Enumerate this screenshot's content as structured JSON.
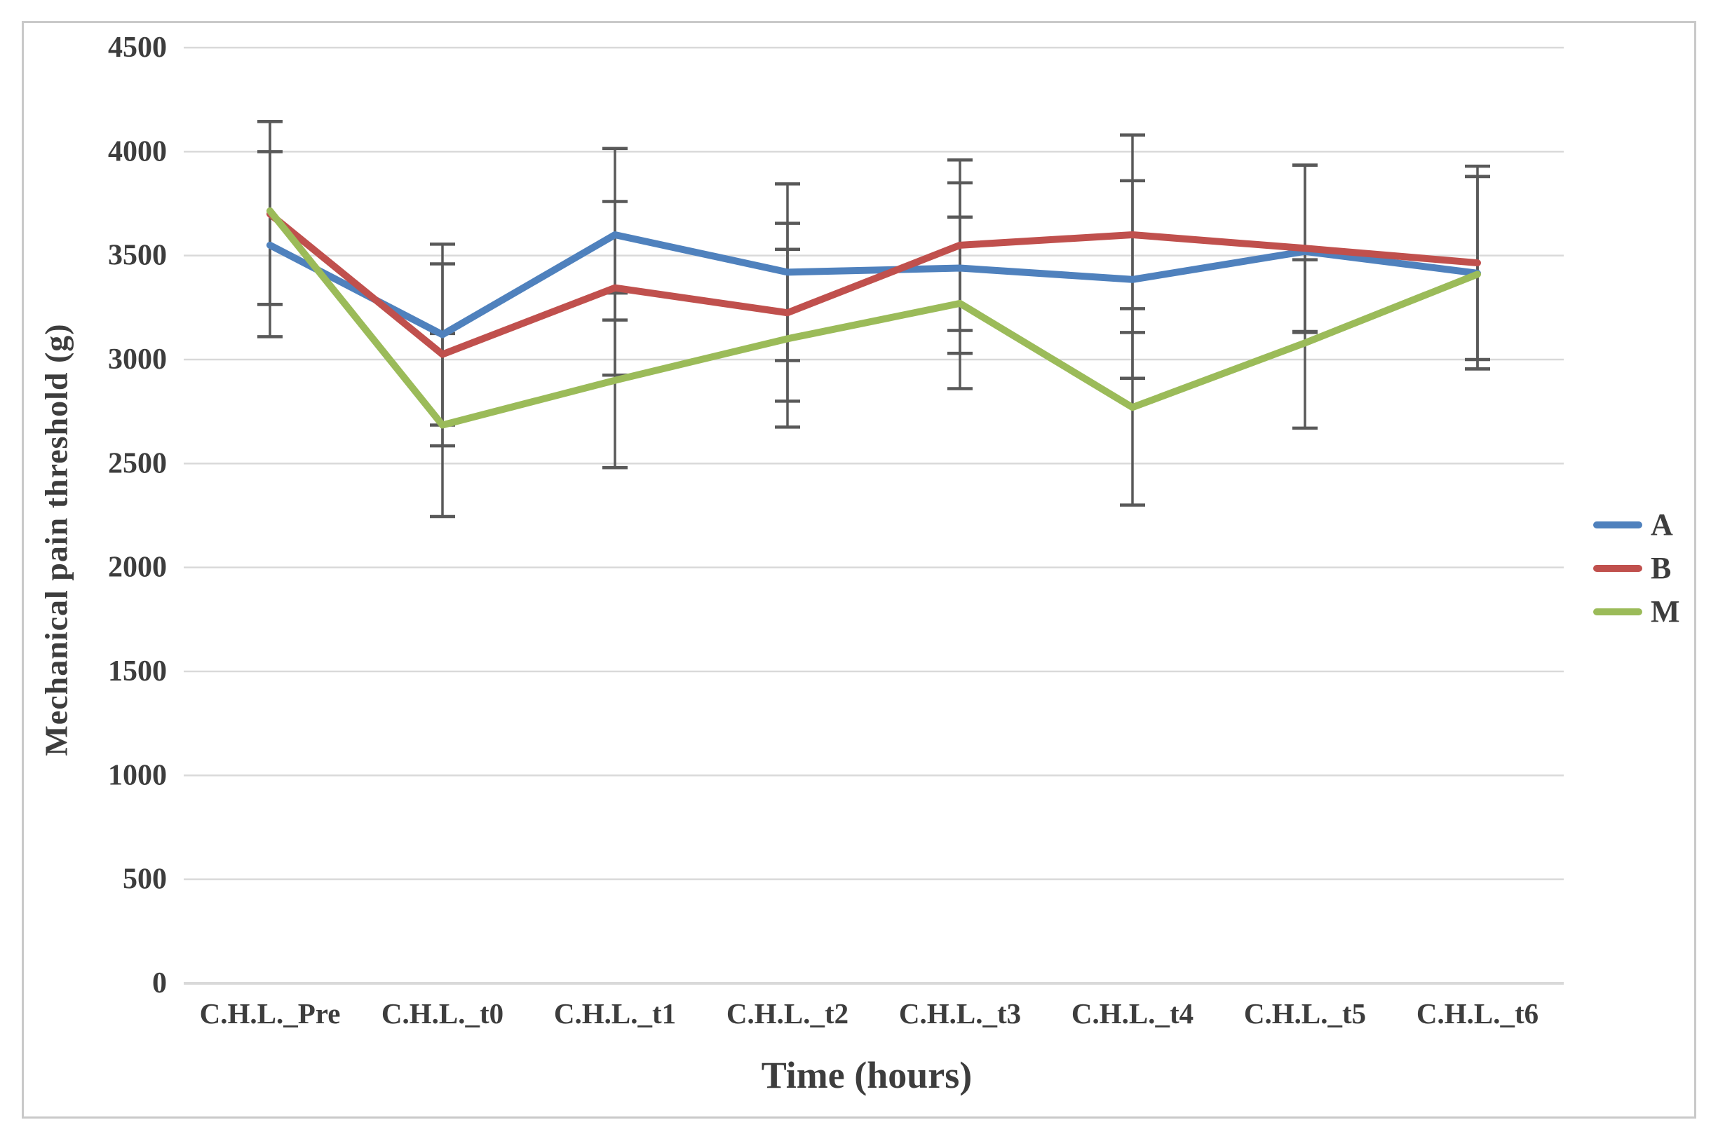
{
  "chart_data": {
    "type": "line",
    "title": "",
    "xlabel": "Time (hours)",
    "ylabel": "Mechanical pain threshold (g)",
    "ylim": [
      0,
      4500
    ],
    "ytick_step": 500,
    "yticks": [
      0,
      500,
      1000,
      1500,
      2000,
      2500,
      3000,
      3500,
      4000,
      4500
    ],
    "grid": true,
    "legend_position": "right",
    "error_bar_color": "#595959",
    "gridline_color": "#d9d9d9",
    "categories": [
      "C.H.L._Pre",
      "C.H.L._t0",
      "C.H.L._t1",
      "C.H.L._t2",
      "C.H.L._t3",
      "C.H.L._t4",
      "C.H.L._t5",
      "C.H.L._t6"
    ],
    "series": [
      {
        "name": "A",
        "color": "#4F81BD",
        "values": [
          3550,
          3120,
          3600,
          3420,
          3440,
          3385,
          3520,
          3415
        ],
        "err_low": [
          3110,
          2685,
          3190,
          2995,
          3030,
          2910,
          3130,
          2955
        ],
        "err_high": [
          4000,
          3555,
          4015,
          3845,
          3850,
          3860,
          3935,
          3880
        ]
      },
      {
        "name": "B",
        "color": "#C0504D",
        "values": [
          3700,
          3025,
          3345,
          3225,
          3550,
          3600,
          3535,
          3465
        ],
        "err_low": [
          3265,
          2585,
          2925,
          2800,
          3140,
          3130,
          3135,
          3000
        ],
        "err_high": [
          4145,
          3460,
          3760,
          3655,
          3960,
          4080,
          3935,
          3930
        ]
      },
      {
        "name": "M",
        "color": "#9BBB59",
        "values": [
          3715,
          2685,
          2900,
          3100,
          3270,
          2770,
          3080,
          3410
        ],
        "err_low": [
          3265,
          2245,
          2480,
          2675,
          2860,
          2300,
          2670,
          2955
        ],
        "err_high": [
          4145,
          3125,
          3320,
          3530,
          3685,
          3245,
          3480,
          3880
        ]
      }
    ]
  }
}
